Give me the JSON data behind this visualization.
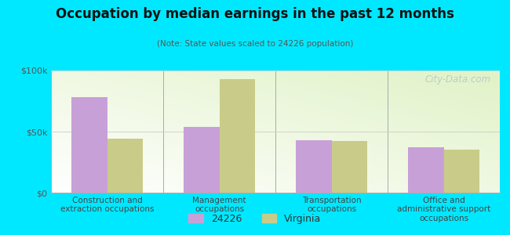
{
  "title": "Occupation by median earnings in the past 12 months",
  "subtitle": "(Note: State values scaled to 24226 population)",
  "categories": [
    "Construction and\nextraction occupations",
    "Management\noccupations",
    "Transportation\noccupations",
    "Office and\nadministrative support\noccupations"
  ],
  "values_24226": [
    78000,
    54000,
    43000,
    37000
  ],
  "values_virginia": [
    44000,
    93000,
    42000,
    35000
  ],
  "color_24226": "#c8a0d8",
  "color_virginia": "#c8cc88",
  "background_outer": "#00e8ff",
  "ylim": [
    0,
    100000
  ],
  "yticks": [
    0,
    50000,
    100000
  ],
  "ytick_labels": [
    "$0",
    "$50k",
    "$100k"
  ],
  "bar_width": 0.32,
  "legend_label_24226": "24226",
  "legend_label_virginia": "Virginia",
  "watermark": "City-Data.com"
}
